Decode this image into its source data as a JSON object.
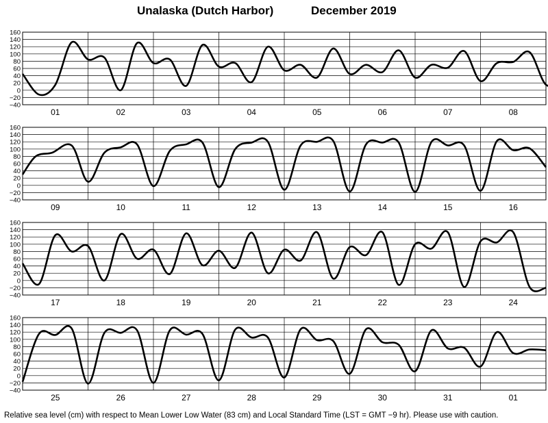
{
  "header": {
    "location": "Unalaska (Dutch Harbor)",
    "month": "December   2019"
  },
  "footer": "Relative sea level (cm) with respect to Mean Lower Low Water (83 cm) and Local Standard Time (LST = GMT −9 hr). Please use with caution.",
  "chart_data": {
    "type": "line",
    "ylim": [
      -40,
      160
    ],
    "yticks": [
      "160",
      "140",
      "120",
      "100",
      "80",
      "60",
      "40",
      "20",
      "0",
      "−20",
      "−40"
    ],
    "grid": true,
    "panels": [
      {
        "days": [
          "01",
          "02",
          "03",
          "04",
          "05",
          "06",
          "07",
          "08"
        ],
        "points": [
          [
            0,
            45
          ],
          [
            0.5,
            -12
          ],
          [
            1.0,
            15
          ],
          [
            1.5,
            132
          ],
          [
            2.0,
            85
          ],
          [
            2.5,
            90
          ],
          [
            3.0,
            0
          ],
          [
            3.5,
            130
          ],
          [
            4.0,
            75
          ],
          [
            4.5,
            85
          ],
          [
            5.0,
            12
          ],
          [
            5.5,
            125
          ],
          [
            6.0,
            65
          ],
          [
            6.5,
            75
          ],
          [
            7.0,
            22
          ],
          [
            7.5,
            120
          ],
          [
            8.0,
            55
          ],
          [
            8.5,
            70
          ],
          [
            9.0,
            35
          ],
          [
            9.5,
            115
          ],
          [
            10.0,
            45
          ],
          [
            10.5,
            70
          ],
          [
            11.0,
            50
          ],
          [
            11.5,
            110
          ],
          [
            12.0,
            35
          ],
          [
            12.5,
            70
          ],
          [
            13.0,
            62
          ],
          [
            13.5,
            108
          ],
          [
            14.0,
            25
          ],
          [
            14.5,
            75
          ],
          [
            15.0,
            78
          ],
          [
            15.5,
            105
          ],
          [
            16.0,
            15
          ],
          [
            16.5,
            27
          ]
        ]
      },
      {
        "days": [
          "09",
          "10",
          "11",
          "12",
          "13",
          "14",
          "15",
          "16"
        ],
        "points": [
          [
            0,
            30
          ],
          [
            0.4,
            80
          ],
          [
            0.9,
            90
          ],
          [
            1.5,
            110
          ],
          [
            2.0,
            10
          ],
          [
            2.5,
            90
          ],
          [
            3.0,
            105
          ],
          [
            3.5,
            113
          ],
          [
            4.0,
            -2
          ],
          [
            4.5,
            95
          ],
          [
            5.0,
            113
          ],
          [
            5.5,
            118
          ],
          [
            6.0,
            -5
          ],
          [
            6.5,
            100
          ],
          [
            7.0,
            118
          ],
          [
            7.5,
            120
          ],
          [
            8.0,
            -12
          ],
          [
            8.5,
            110
          ],
          [
            9.0,
            120
          ],
          [
            9.5,
            122
          ],
          [
            10.0,
            -17
          ],
          [
            10.5,
            113
          ],
          [
            11.0,
            118
          ],
          [
            11.5,
            118
          ],
          [
            12.0,
            -18
          ],
          [
            12.5,
            120
          ],
          [
            13.0,
            110
          ],
          [
            13.5,
            110
          ],
          [
            14.0,
            -15
          ],
          [
            14.5,
            122
          ],
          [
            15.0,
            97
          ],
          [
            15.5,
            102
          ],
          [
            16.0,
            50
          ]
        ]
      },
      {
        "days": [
          "17",
          "18",
          "19",
          "20",
          "21",
          "22",
          "23",
          "24"
        ],
        "points": [
          [
            0,
            47
          ],
          [
            0.5,
            -10
          ],
          [
            1.0,
            125
          ],
          [
            1.5,
            80
          ],
          [
            2.0,
            95
          ],
          [
            2.5,
            0
          ],
          [
            3.0,
            128
          ],
          [
            3.5,
            60
          ],
          [
            4.0,
            85
          ],
          [
            4.5,
            18
          ],
          [
            5.0,
            130
          ],
          [
            5.5,
            42
          ],
          [
            6.0,
            82
          ],
          [
            6.5,
            35
          ],
          [
            7.0,
            132
          ],
          [
            7.5,
            20
          ],
          [
            8.0,
            85
          ],
          [
            8.5,
            55
          ],
          [
            9.0,
            133
          ],
          [
            9.5,
            5
          ],
          [
            10.0,
            92
          ],
          [
            10.5,
            70
          ],
          [
            11.0,
            133
          ],
          [
            11.5,
            -12
          ],
          [
            12.0,
            100
          ],
          [
            12.5,
            88
          ],
          [
            13.0,
            133
          ],
          [
            13.5,
            -18
          ],
          [
            14.0,
            108
          ],
          [
            14.5,
            105
          ],
          [
            15.0,
            133
          ],
          [
            15.5,
            -18
          ],
          [
            16.0,
            -20
          ]
        ]
      },
      {
        "days": [
          "25",
          "26",
          "27",
          "28",
          "29",
          "30",
          "31",
          "01"
        ],
        "points": [
          [
            0,
            -17
          ],
          [
            0.5,
            115
          ],
          [
            1.0,
            112
          ],
          [
            1.5,
            130
          ],
          [
            2.0,
            -22
          ],
          [
            2.5,
            118
          ],
          [
            3.0,
            118
          ],
          [
            3.5,
            125
          ],
          [
            4.0,
            -20
          ],
          [
            4.5,
            125
          ],
          [
            5.0,
            113
          ],
          [
            5.5,
            115
          ],
          [
            6.0,
            -13
          ],
          [
            6.5,
            127
          ],
          [
            7.0,
            105
          ],
          [
            7.5,
            105
          ],
          [
            8.0,
            -5
          ],
          [
            8.5,
            128
          ],
          [
            9.0,
            98
          ],
          [
            9.5,
            95
          ],
          [
            10.0,
            5
          ],
          [
            10.5,
            128
          ],
          [
            11.0,
            92
          ],
          [
            11.5,
            85
          ],
          [
            12.0,
            12
          ],
          [
            12.5,
            125
          ],
          [
            13.0,
            75
          ],
          [
            13.5,
            77
          ],
          [
            14.0,
            25
          ],
          [
            14.5,
            120
          ],
          [
            15.0,
            62
          ],
          [
            15.5,
            72
          ],
          [
            16.0,
            70
          ]
        ]
      }
    ]
  }
}
